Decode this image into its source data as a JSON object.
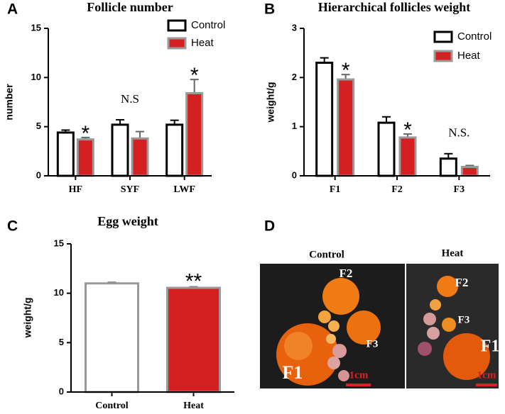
{
  "chart_data": [
    {
      "type": "bar",
      "panel": "A",
      "title": "Follicle number",
      "ylabel": "number",
      "categories": [
        "HF",
        "SYF",
        "LWF"
      ],
      "series": [
        {
          "name": "Control",
          "color": "#ffffff",
          "edgecolor": "#000000",
          "values": [
            4.4,
            5.2,
            5.2
          ],
          "errors": [
            0.25,
            0.5,
            0.45
          ]
        },
        {
          "name": "Heat",
          "color": "#d42020",
          "edgecolor": "#999999",
          "values": [
            3.7,
            3.8,
            8.4
          ],
          "errors": [
            0.2,
            0.7,
            1.4
          ],
          "annotations": [
            "*",
            null,
            "*"
          ]
        }
      ],
      "group_annotations": [
        null,
        "N.S",
        null
      ],
      "ylim": [
        0,
        15
      ],
      "yticks": [
        0,
        5,
        10,
        15
      ]
    },
    {
      "type": "bar",
      "panel": "B",
      "title": "Hierarchical follicles weight",
      "ylabel": "weight/g",
      "categories": [
        "F1",
        "F2",
        "F3"
      ],
      "series": [
        {
          "name": "Control",
          "color": "#ffffff",
          "edgecolor": "#000000",
          "values": [
            2.3,
            1.08,
            0.35
          ],
          "errors": [
            0.1,
            0.12,
            0.1
          ]
        },
        {
          "name": "Heat",
          "color": "#d42020",
          "edgecolor": "#999999",
          "values": [
            1.96,
            0.78,
            0.18
          ],
          "errors": [
            0.1,
            0.07,
            0.03
          ],
          "annotations": [
            "*",
            "*",
            null
          ]
        }
      ],
      "group_annotations": [
        null,
        null,
        "N.S."
      ],
      "ylim": [
        0,
        3
      ],
      "yticks": [
        0,
        1,
        2,
        3
      ]
    },
    {
      "type": "bar",
      "panel": "C",
      "title": "Egg weight",
      "ylabel": "weight/g",
      "categories": [
        "Control",
        "Heat"
      ],
      "values": [
        11.0,
        10.55
      ],
      "errors": [
        0.1,
        0.1
      ],
      "colors": [
        "#ffffff",
        "#d42020"
      ],
      "edgecolors": [
        "#999999",
        "#999999"
      ],
      "annotations": [
        null,
        "**"
      ],
      "ylim": [
        0,
        15
      ],
      "yticks": [
        0,
        5,
        10,
        15
      ]
    }
  ],
  "photo": {
    "panel": "D",
    "control": {
      "title": "Control",
      "labels": [
        "F1",
        "F2",
        "F3"
      ],
      "scale": "1cm"
    },
    "heat": {
      "title": "Heat",
      "labels": [
        "F1",
        "F2",
        "F3"
      ],
      "scale": "1cm"
    }
  }
}
